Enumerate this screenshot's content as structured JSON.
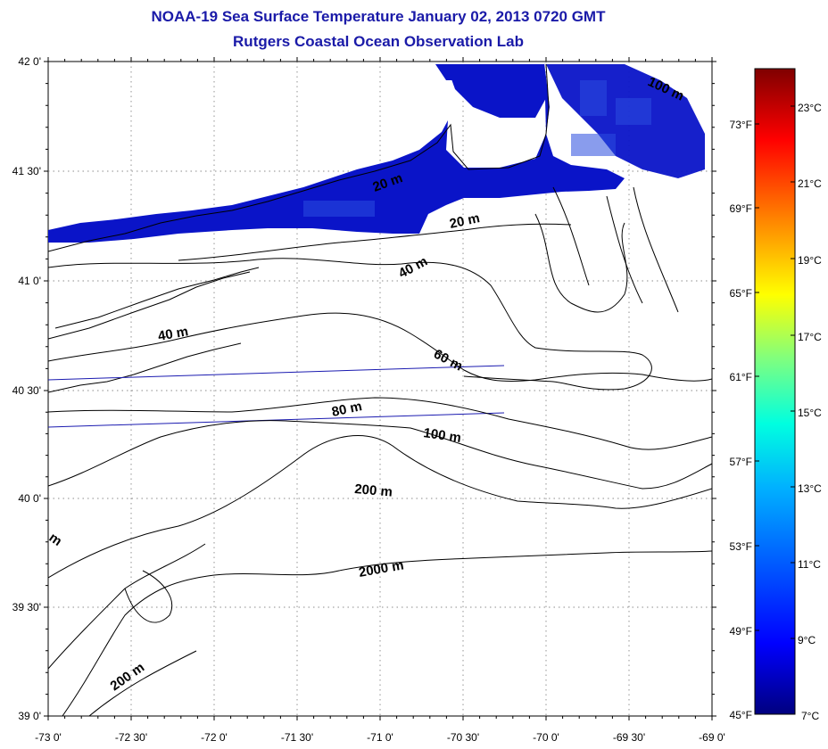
{
  "title": "NOAA-19 Sea Surface Temperature January 02, 2013 0720 GMT",
  "subtitle": "Rutgers Coastal Ocean Observation Lab",
  "map": {
    "lon_range": [
      -73,
      -69
    ],
    "lat_range": [
      39,
      42
    ],
    "lon_ticks": [
      "-73 0'",
      "-72 30'",
      "-72 0'",
      "-71 30'",
      "-71 0'",
      "-70 30'",
      "-70 0'",
      "-69 30'",
      "-69 0'"
    ],
    "lat_ticks": [
      "39 0'",
      "39 30'",
      "40 0'",
      "40 30'",
      "41 0'",
      "41 30'",
      "42 0'"
    ],
    "contour_labels": [
      "20 m",
      "40 m",
      "40 m",
      "60 m",
      "80 m",
      "100 m",
      "200 m",
      "2000 m",
      "200 m",
      "m",
      "20 m",
      "100 m"
    ],
    "land_color": "#ffffff",
    "sst_color": "#0a14c8"
  },
  "colorbar": {
    "celsius_labels": [
      "23°C",
      "21°C",
      "19°C",
      "17°C",
      "15°C",
      "13°C",
      "11°C",
      "9°C",
      "7°C"
    ],
    "fahrenheit_labels": [
      "73°F",
      "69°F",
      "65°F",
      "61°F",
      "57°F",
      "53°F",
      "49°F",
      "45°F"
    ],
    "stops": [
      "#00007f",
      "#0000ff",
      "#007fff",
      "#00ffff",
      "#7fff7f",
      "#ffff00",
      "#ff7f00",
      "#ff0000",
      "#7f0000"
    ]
  }
}
